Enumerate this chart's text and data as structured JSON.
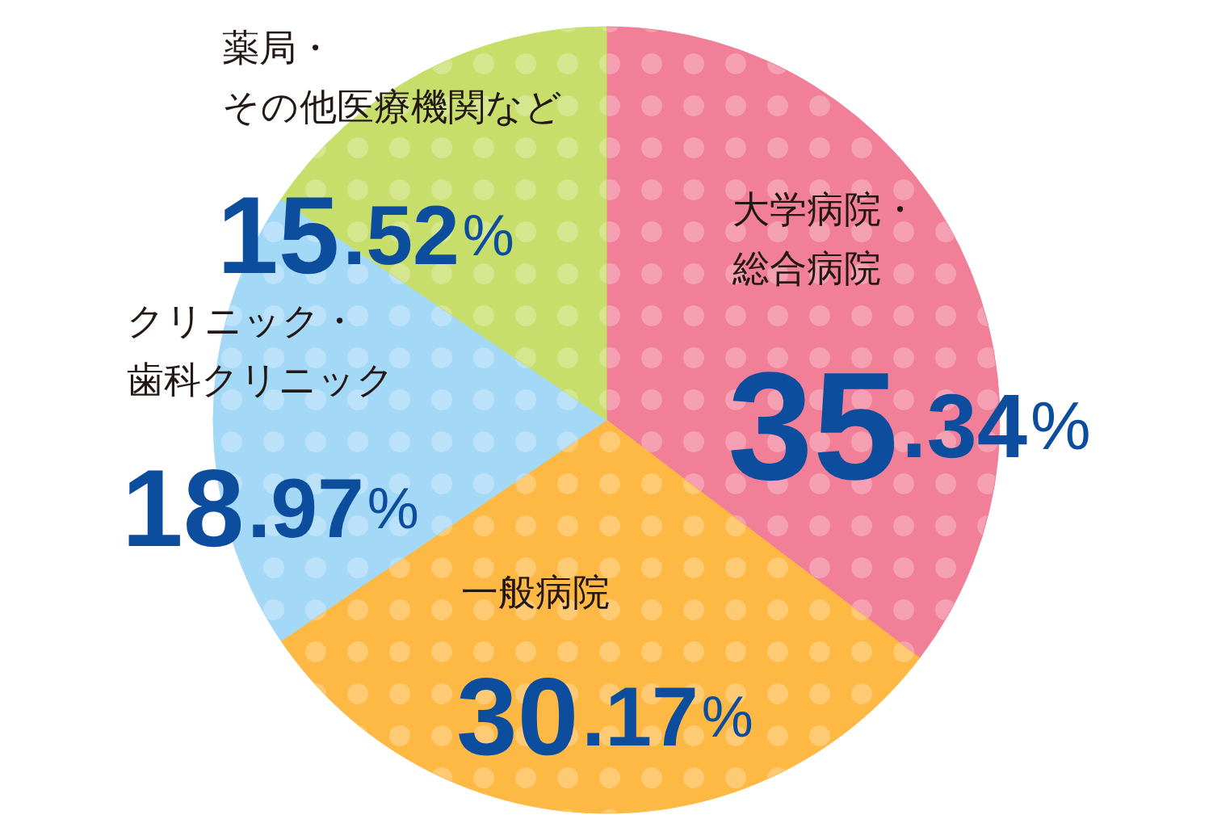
{
  "chart_data": {
    "type": "pie",
    "categories": [
      "大学病院・総合病院",
      "一般病院",
      "クリニック・歯科クリニック",
      "薬局・その他医療機関など"
    ],
    "values": [
      35.34,
      30.17,
      18.97,
      15.52
    ],
    "colors": [
      "#f17f98",
      "#feb844",
      "#a4d8f7",
      "#c7de6a"
    ],
    "value_labels": [
      "35.34%",
      "30.17%",
      "18.97%",
      "15.52%"
    ]
  }
}
